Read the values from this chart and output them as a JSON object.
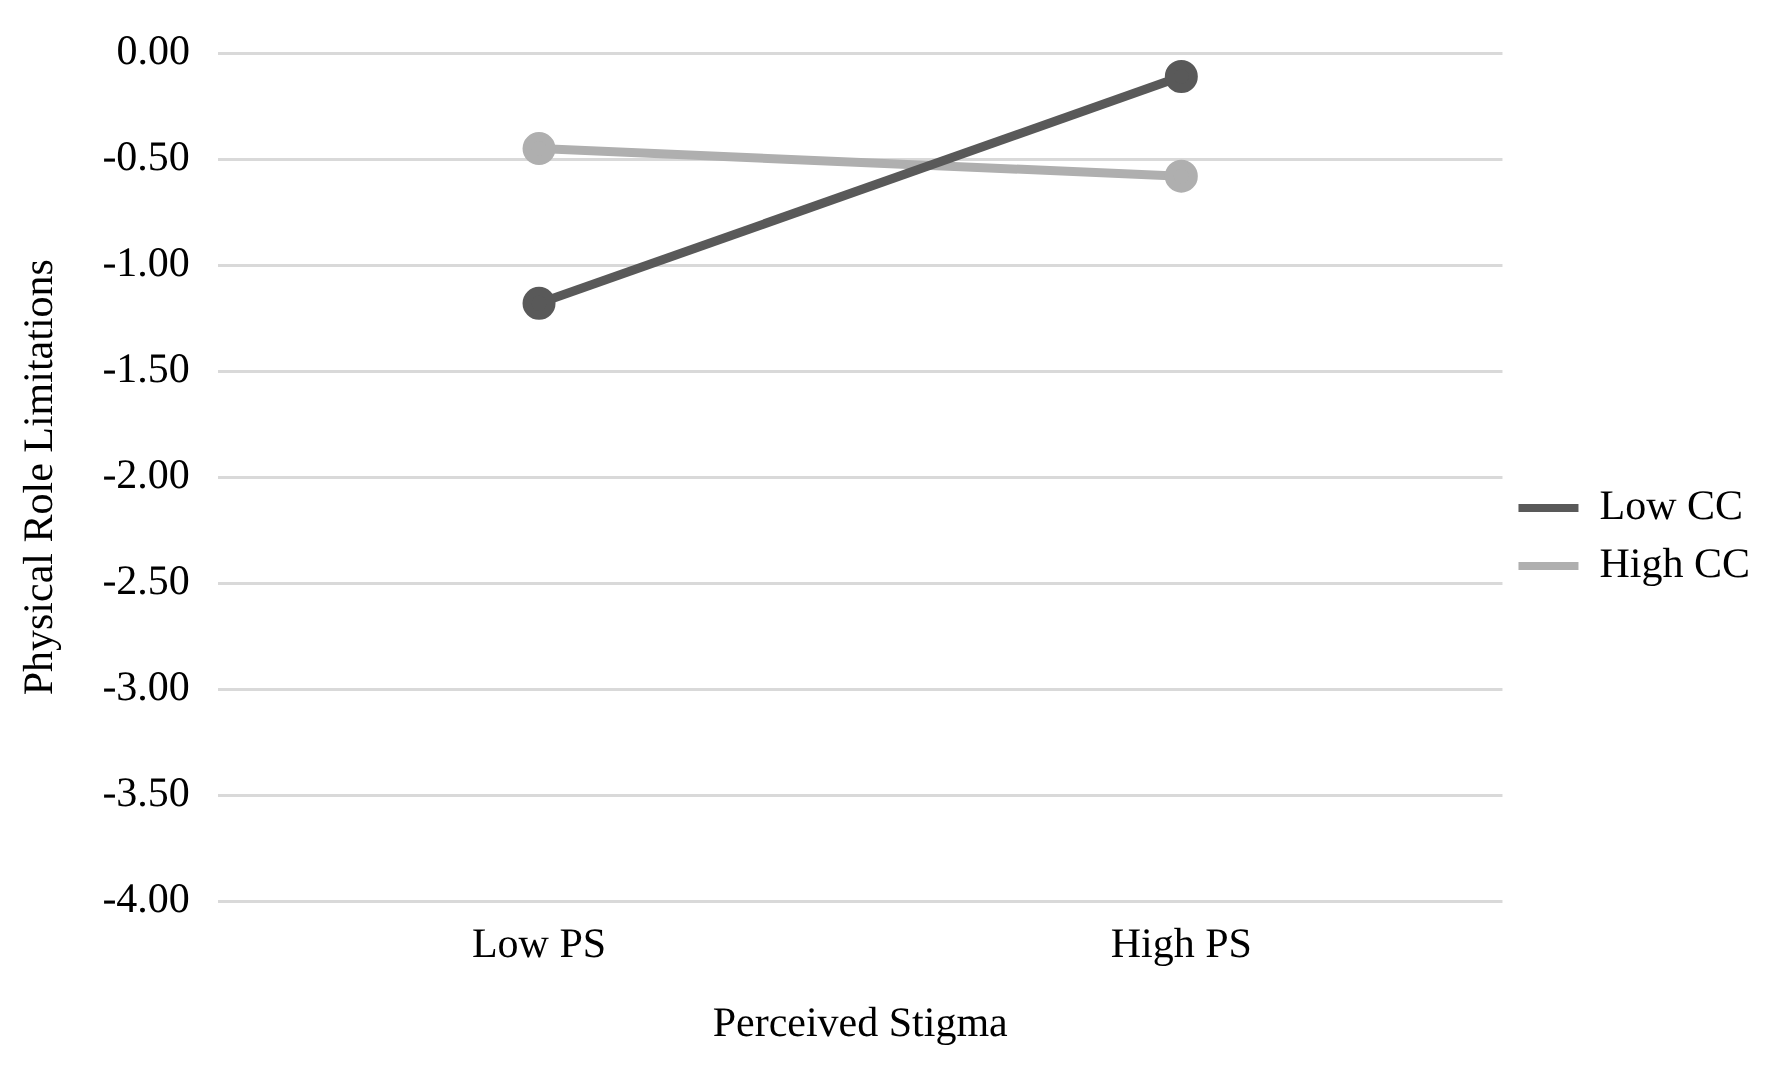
{
  "chart_data": {
    "type": "line",
    "xlabel": "Perceived Stigma",
    "ylabel": "Physical Role Limitations",
    "categories": [
      "Low PS",
      "High PS"
    ],
    "series": [
      {
        "name": "Low CC",
        "color": "#595959",
        "values": [
          -1.18,
          -0.11
        ]
      },
      {
        "name": "High CC",
        "color": "#afafaf",
        "values": [
          -0.45,
          -0.58
        ]
      }
    ],
    "ylim": [
      -4,
      0
    ],
    "yticks": [
      {
        "value": 0,
        "label": "0.00"
      },
      {
        "value": -0.5,
        "label": "-0.50"
      },
      {
        "value": -1,
        "label": "-1.00"
      },
      {
        "value": -1.5,
        "label": "-1.50"
      },
      {
        "value": -2,
        "label": "-2.00"
      },
      {
        "value": -2.5,
        "label": "-2.50"
      },
      {
        "value": -3,
        "label": "-3.00"
      },
      {
        "value": -3.5,
        "label": "-3.50"
      },
      {
        "value": -4,
        "label": "-4.00"
      }
    ],
    "grid": "y",
    "legend": "right",
    "marker": "circle",
    "line_style": "solid"
  }
}
